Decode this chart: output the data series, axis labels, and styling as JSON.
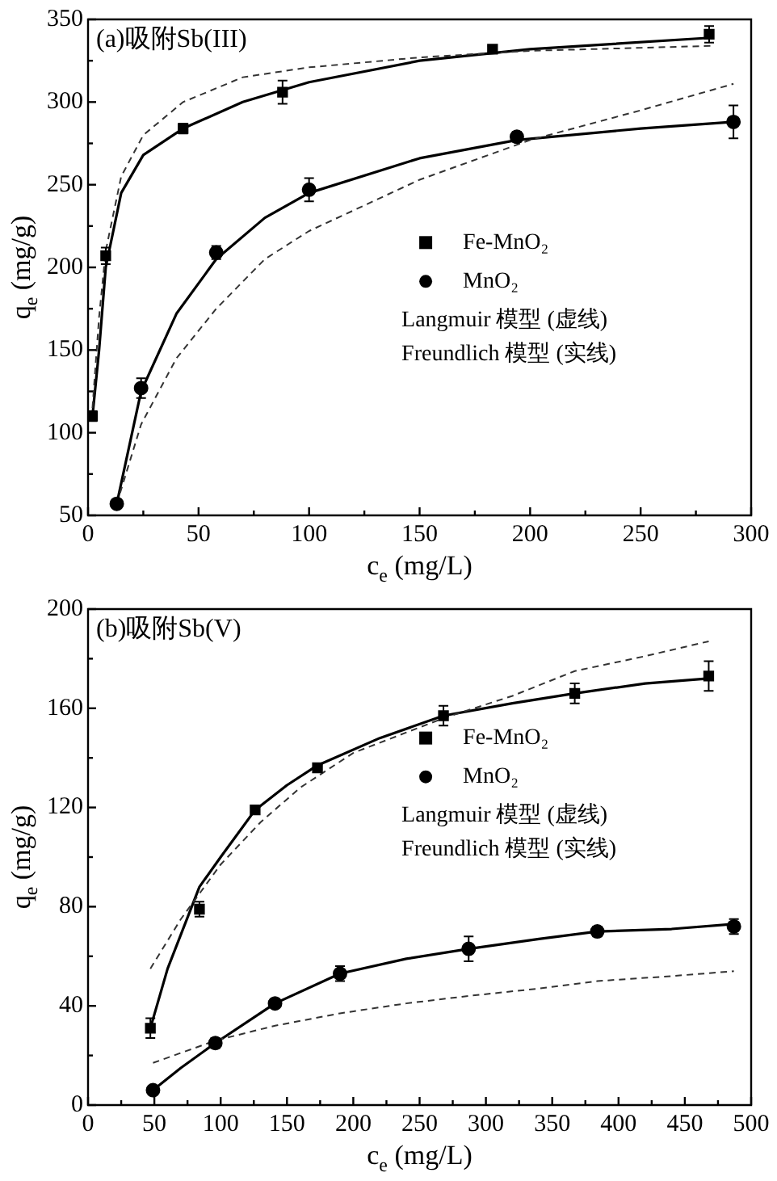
{
  "chart_data": [
    {
      "type": "scatter",
      "title": "(a)吸附Sb(III)",
      "xlabel": "c$_{e}$ (mg/L)",
      "ylabel": "q$_{e}$ (mg/g)",
      "xlim": [
        0,
        300
      ],
      "ylim": [
        50,
        350
      ],
      "xticks": [
        0,
        {
          "value": 25,
          "label": null
        },
        50,
        {
          "value": 75,
          "label": null
        },
        100,
        {
          "value": 125,
          "label": null
        },
        150,
        {
          "value": 175,
          "label": null
        },
        200,
        {
          "value": 225,
          "label": null
        },
        250,
        {
          "value": 275,
          "label": null
        },
        300
      ],
      "yticks": [
        50,
        {
          "value": 75,
          "label": null
        },
        100,
        {
          "value": 125,
          "label": null
        },
        150,
        {
          "value": 175,
          "label": null
        },
        200,
        {
          "value": 225,
          "label": null
        },
        250,
        {
          "value": 275,
          "label": null
        },
        300,
        {
          "value": 325,
          "label": null
        },
        350
      ],
      "legend": "center right",
      "annotations": [
        "Langmuir 模型 (虚线)",
        "Freundlich 模型 (实线)"
      ],
      "series": [
        {
          "name": "Fe-MnO₂",
          "marker": "square",
          "color": "#000000",
          "x": [
            2,
            8,
            43,
            88,
            183,
            281
          ],
          "values": [
            110,
            207,
            284,
            306,
            332,
            341
          ],
          "errors": [
            3,
            5,
            3,
            7,
            2,
            5
          ]
        },
        {
          "name": "MnO₂",
          "marker": "circle",
          "color": "#000000",
          "x": [
            13,
            24,
            58,
            100,
            194,
            292
          ],
          "values": [
            57,
            127,
            209,
            247,
            279,
            288
          ],
          "errors": [
            null,
            6,
            4,
            7,
            3,
            10
          ]
        },
        {
          "type": "line",
          "line_style": "dashed",
          "color": "#333333",
          "x": [
            2,
            5,
            8,
            15,
            25,
            43,
            70,
            100,
            150,
            200,
            283
          ],
          "values": [
            115,
            170,
            210,
            255,
            280,
            300,
            315,
            321,
            327,
            331,
            334
          ]
        },
        {
          "type": "line",
          "line_style": "solid",
          "color": "#000000",
          "x": [
            2,
            5,
            8,
            15,
            25,
            43,
            70,
            100,
            150,
            200,
            283
          ],
          "values": [
            110,
            150,
            200,
            245,
            268,
            284,
            300,
            312,
            325,
            332,
            339
          ]
        },
        {
          "type": "line",
          "line_style": "dashed",
          "color": "#333333",
          "x": [
            13,
            24,
            40,
            58,
            80,
            100,
            150,
            200,
            250,
            292
          ],
          "values": [
            57,
            105,
            145,
            175,
            205,
            222,
            253,
            277,
            295,
            311
          ]
        },
        {
          "type": "line",
          "line_style": "solid",
          "color": "#000000",
          "x": [
            13,
            24,
            40,
            58,
            80,
            100,
            150,
            194,
            250,
            292
          ],
          "values": [
            57,
            125,
            172,
            205,
            230,
            245,
            266,
            277,
            284,
            288
          ]
        }
      ]
    },
    {
      "type": "scatter",
      "title": "(b)吸附Sb(V)",
      "xlabel": "c$_{e}$ (mg/L)",
      "ylabel": "q$_{e}$ (mg/g)",
      "xlim": [
        0,
        500
      ],
      "ylim": [
        0,
        200
      ],
      "xticks": [
        0,
        {
          "value": 25,
          "label": null
        },
        50,
        {
          "value": 75,
          "label": null
        },
        100,
        {
          "value": 125,
          "label": null
        },
        150,
        {
          "value": 175,
          "label": null
        },
        200,
        {
          "value": 225,
          "label": null
        },
        250,
        {
          "value": 275,
          "label": null
        },
        300,
        {
          "value": 325,
          "label": null
        },
        350,
        {
          "value": 375,
          "label": null
        },
        400,
        {
          "value": 425,
          "label": null
        },
        450,
        {
          "value": 475,
          "label": null
        },
        500
      ],
      "yticks": [
        0,
        {
          "value": 20,
          "label": null
        },
        40,
        {
          "value": 60,
          "label": null
        },
        80,
        {
          "value": 100,
          "label": null
        },
        120,
        {
          "value": 140,
          "label": null
        },
        160,
        {
          "value": 180,
          "label": null
        },
        200
      ],
      "legend": "top right",
      "annotations": [
        "Langmuir 模型 (虚线)",
        "Freundlich 模型 (实线)"
      ],
      "series": [
        {
          "name": "Fe-MnO₂",
          "marker": "square",
          "color": "#000000",
          "x": [
            47,
            84,
            126,
            173,
            268,
            367,
            468
          ],
          "values": [
            31,
            79,
            119,
            136,
            157,
            166,
            173
          ],
          "errors": [
            4,
            3,
            1,
            1,
            4,
            4,
            6
          ]
        },
        {
          "name": "MnO₂",
          "marker": "circle",
          "color": "#000000",
          "x": [
            49,
            96,
            141,
            190,
            287,
            384,
            487
          ],
          "values": [
            6,
            25,
            41,
            53,
            63,
            70,
            72
          ],
          "errors": [
            null,
            2,
            1,
            3,
            5,
            2,
            3
          ]
        },
        {
          "type": "line",
          "line_style": "dashed",
          "color": "#333333",
          "x": [
            47,
            70,
            100,
            130,
            160,
            200,
            268,
            320,
            367,
            420,
            468
          ],
          "values": [
            55,
            75,
            97,
            114,
            128,
            142,
            156,
            165,
            175,
            181,
            187
          ]
        },
        {
          "type": "line",
          "line_style": "solid",
          "color": "#000000",
          "x": [
            47,
            60,
            84,
            100,
            126,
            150,
            173,
            220,
            268,
            320,
            367,
            420,
            468
          ],
          "values": [
            31,
            55,
            88,
            100,
            119,
            129,
            137,
            148,
            157,
            162,
            166,
            170,
            172
          ]
        },
        {
          "type": "line",
          "line_style": "dashed",
          "color": "#333333",
          "x": [
            49,
            96,
            141,
            190,
            240,
            287,
            340,
            384,
            440,
            487
          ],
          "values": [
            17,
            26,
            32,
            37,
            41,
            44,
            47,
            50,
            52,
            54
          ]
        },
        {
          "type": "line",
          "line_style": "solid",
          "color": "#000000",
          "x": [
            49,
            70,
            96,
            141,
            190,
            240,
            287,
            340,
            384,
            440,
            487
          ],
          "values": [
            6,
            15,
            25,
            41,
            53,
            59,
            63,
            67,
            70,
            71,
            73
          ]
        }
      ]
    }
  ]
}
